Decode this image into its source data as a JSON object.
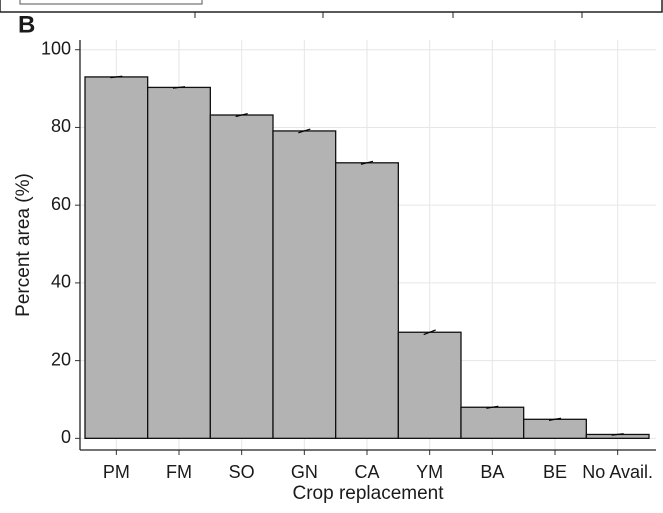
{
  "panel_label": "B",
  "chart_data": {
    "type": "bar",
    "x_label": "Crop replacement",
    "y_label": "Percent area (%)",
    "categories": [
      "PM",
      "FM",
      "SO",
      "GN",
      "CA",
      "YM",
      "BA",
      "BE",
      "No Avail."
    ],
    "values": [
      93,
      90.3,
      83.2,
      79.1,
      70.9,
      27.3,
      8,
      4.9,
      1
    ],
    "errors": [
      0,
      0,
      0.2,
      0.3,
      0.2,
      0.4,
      0.1,
      0.1,
      0
    ],
    "color": "#b3b3b3",
    "ylim": [
      -3,
      102.5
    ],
    "yticks": [
      0,
      20,
      40,
      60,
      80,
      100
    ],
    "grid": true
  }
}
